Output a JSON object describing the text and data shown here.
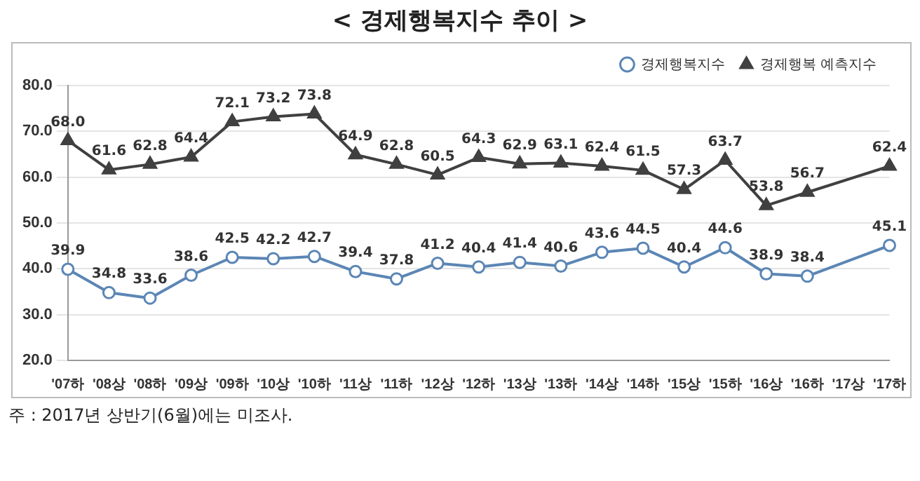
{
  "chart_data": {
    "type": "line",
    "title": "< 경제행복지수 추이 >",
    "categories": [
      "'07하",
      "'08상",
      "'08하",
      "'09상",
      "'09하",
      "'10상",
      "'10하",
      "'11상",
      "'11하",
      "'12상",
      "'12하",
      "'13상",
      "'13하",
      "'14상",
      "'14하",
      "'15상",
      "'15하",
      "'16상",
      "'16하",
      "'17상",
      "'17하"
    ],
    "series": [
      {
        "name": "경제행복지수",
        "color": "#5b86b5",
        "marker": "circle",
        "values": [
          39.9,
          34.8,
          33.6,
          38.6,
          42.5,
          42.2,
          42.7,
          39.4,
          37.8,
          41.2,
          40.4,
          41.4,
          40.6,
          43.6,
          44.5,
          40.4,
          44.6,
          38.9,
          38.4,
          null,
          45.1
        ],
        "value_labels": [
          "39.9",
          "34.8",
          "33.6",
          "38.6",
          "42.5",
          "42.2",
          "42.7",
          "39.4",
          "37.8",
          "41.2",
          "40.4",
          "41.4",
          "40.6",
          "43.6",
          "44.5",
          "40.4",
          "44.6",
          "38.9",
          "38.4",
          null,
          "45.1"
        ]
      },
      {
        "name": "경제행복 예측지수",
        "color": "#404040",
        "marker": "triangle",
        "values": [
          68.0,
          61.6,
          62.8,
          64.4,
          72.1,
          73.2,
          73.8,
          64.9,
          62.8,
          60.5,
          64.3,
          62.9,
          63.1,
          62.4,
          61.5,
          57.3,
          63.7,
          53.8,
          56.7,
          null,
          62.4
        ],
        "value_labels": [
          "68.0",
          "61.6",
          "62.8",
          "64.4",
          "72.1",
          "73.2",
          "73.8",
          "64.9",
          "62.8",
          "60.5",
          "64.3",
          "62.9",
          "63.1",
          "62.4",
          "61.5",
          "57.3",
          "63.7",
          "53.8",
          "56.7",
          null,
          "62.4"
        ]
      }
    ],
    "ylim": [
      20,
      80
    ],
    "yticks": [
      {
        "value": 20,
        "label": "20.0"
      },
      {
        "value": 30,
        "label": "30.0"
      },
      {
        "value": 40,
        "label": "40.0"
      },
      {
        "value": 50,
        "label": "50.0"
      },
      {
        "value": 60,
        "label": "60.0"
      },
      {
        "value": 70,
        "label": "70.0"
      },
      {
        "value": 80,
        "label": "80.0"
      }
    ],
    "grid": "y",
    "legend": "top right",
    "line_style": "solid",
    "annotations": [
      "주 : 2017년 상반기(6월)에는 미조사."
    ]
  }
}
